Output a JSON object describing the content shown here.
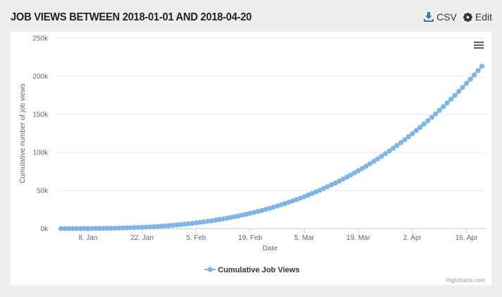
{
  "header": {
    "title": "JOB VIEWS BETWEEN 2018-01-01 AND 2018-04-20",
    "buttons": [
      "CSV",
      "Edit"
    ]
  },
  "chart_data": {
    "type": "line",
    "xlabel": "Date",
    "ylabel": "Cumulative number of job views",
    "credits": "Highcharts.com",
    "x": [
      1,
      2,
      3,
      4,
      5,
      6,
      7,
      8,
      9,
      10,
      11,
      12,
      13,
      14,
      15,
      16,
      17,
      18,
      19,
      20,
      21,
      22,
      23,
      24,
      25,
      26,
      27,
      28,
      29,
      30,
      31,
      32,
      33,
      34,
      35,
      36,
      37,
      38,
      39,
      40,
      41,
      42,
      43,
      44,
      45,
      46,
      47,
      48,
      49,
      50,
      51,
      52,
      53,
      54,
      55,
      56,
      57,
      58,
      59,
      60,
      61,
      62,
      63,
      64,
      65,
      66,
      67,
      68,
      69,
      70,
      71,
      72,
      73,
      74,
      75,
      76,
      77,
      78,
      79,
      80,
      81,
      82,
      83,
      84,
      85,
      86,
      87,
      88,
      89,
      90,
      91,
      92,
      93,
      94,
      95,
      96,
      97,
      98,
      99,
      100,
      101,
      102,
      103,
      104,
      105,
      106,
      107,
      108,
      109,
      110
    ],
    "series": [
      {
        "name": "Cumulative Job Views",
        "color": "#7cb5ec",
        "values": [
          0,
          0,
          0,
          0,
          0,
          0,
          100,
          100,
          100,
          200,
          200,
          300,
          400,
          400,
          500,
          700,
          800,
          900,
          1100,
          1300,
          1500,
          1700,
          1900,
          2200,
          2500,
          2800,
          3100,
          3500,
          3900,
          4300,
          4800,
          5200,
          5800,
          6300,
          6900,
          7500,
          8100,
          8800,
          9500,
          10200,
          11000,
          11900,
          12700,
          13600,
          14600,
          15600,
          16600,
          17700,
          18800,
          20000,
          21200,
          22500,
          23800,
          25200,
          26600,
          28100,
          29600,
          31200,
          32900,
          34600,
          36300,
          38100,
          40000,
          41900,
          43900,
          46000,
          48100,
          50300,
          52600,
          54900,
          57300,
          59700,
          62200,
          64800,
          67500,
          70200,
          73000,
          75900,
          78900,
          81900,
          85000,
          88200,
          91500,
          94800,
          98300,
          101800,
          105400,
          109000,
          112800,
          116600,
          120600,
          124600,
          128700,
          132900,
          137200,
          141600,
          146000,
          150600,
          155200,
          160000,
          164800,
          169800,
          174800,
          180000,
          185200,
          190600,
          196000,
          201600,
          207200,
          213000
        ]
      }
    ],
    "xlim": [
      0,
      111
    ],
    "xticks": [
      {
        "value": 8,
        "label": "8. Jan"
      },
      {
        "value": 22,
        "label": "22. Jan"
      },
      {
        "value": 36,
        "label": "5. Feb"
      },
      {
        "value": 50,
        "label": "19. Feb"
      },
      {
        "value": 64,
        "label": "5. Mar"
      },
      {
        "value": 78,
        "label": "19. Mar"
      },
      {
        "value": 92,
        "label": "2. Apr"
      },
      {
        "value": 106,
        "label": "16. Apr"
      }
    ],
    "ylim": [
      0,
      250000
    ],
    "yticks": [
      {
        "value": 0,
        "label": "0k"
      },
      {
        "value": 50000,
        "label": "50k"
      },
      {
        "value": 100000,
        "label": "100k"
      },
      {
        "value": 150000,
        "label": "150k"
      },
      {
        "value": 200000,
        "label": "200k"
      },
      {
        "value": 250000,
        "label": "250k"
      }
    ],
    "grid": true
  }
}
